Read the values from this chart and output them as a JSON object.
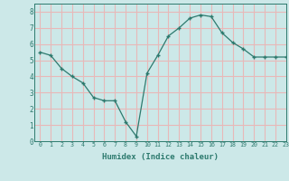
{
  "x": [
    0,
    1,
    2,
    3,
    4,
    5,
    6,
    7,
    8,
    9,
    10,
    11,
    12,
    13,
    14,
    15,
    16,
    17,
    18,
    19,
    20,
    21,
    22,
    23
  ],
  "y": [
    5.5,
    5.3,
    4.5,
    4.0,
    3.6,
    2.7,
    2.5,
    2.5,
    1.2,
    0.3,
    4.2,
    5.3,
    6.5,
    7.0,
    7.6,
    7.8,
    7.7,
    6.7,
    6.1,
    5.7,
    5.2,
    5.2,
    5.2,
    5.2
  ],
  "xlabel": "Humidex (Indice chaleur)",
  "ylim": [
    0,
    8.5
  ],
  "xlim": [
    -0.5,
    23
  ],
  "yticks": [
    0,
    1,
    2,
    3,
    4,
    5,
    6,
    7,
    8
  ],
  "xticks": [
    0,
    1,
    2,
    3,
    4,
    5,
    6,
    7,
    8,
    9,
    10,
    11,
    12,
    13,
    14,
    15,
    16,
    17,
    18,
    19,
    20,
    21,
    22,
    23
  ],
  "line_color": "#2d7a6e",
  "marker": "+",
  "bg_color": "#cce8e8",
  "grid_color": "#e8b8b8",
  "label_color": "#2d7a6e",
  "tick_color": "#2d7a6e",
  "spine_color": "#2d7a6e"
}
